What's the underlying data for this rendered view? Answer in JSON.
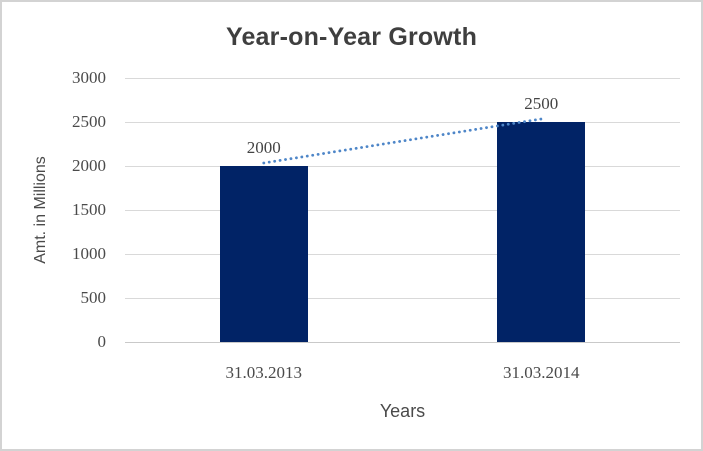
{
  "chart_data": {
    "type": "bar",
    "title": "Year-on-Year Growth",
    "xlabel": "Years",
    "ylabel": "Amt. in Millions",
    "categories": [
      "31.03.2013",
      "31.03.2014"
    ],
    "values": [
      2000,
      2500
    ],
    "data_labels": [
      "2000",
      "2500"
    ],
    "ylim": [
      0,
      3000
    ],
    "yticks": [
      0,
      500,
      1000,
      1500,
      2000,
      2500,
      3000
    ],
    "grid": true,
    "legend": "none",
    "trendline": {
      "type": "linear",
      "style": "dotted",
      "points": [
        2000,
        2500
      ]
    },
    "colors": {
      "bar": "#012366",
      "trendline": "#4e86c8",
      "gridline": "#d9d9d9",
      "axis_line": "#c9c9c9",
      "title_text": "#3f3f3f",
      "label_text": "#4a4a4a",
      "border": "#d3d3d3",
      "background": "#ffffff"
    }
  }
}
